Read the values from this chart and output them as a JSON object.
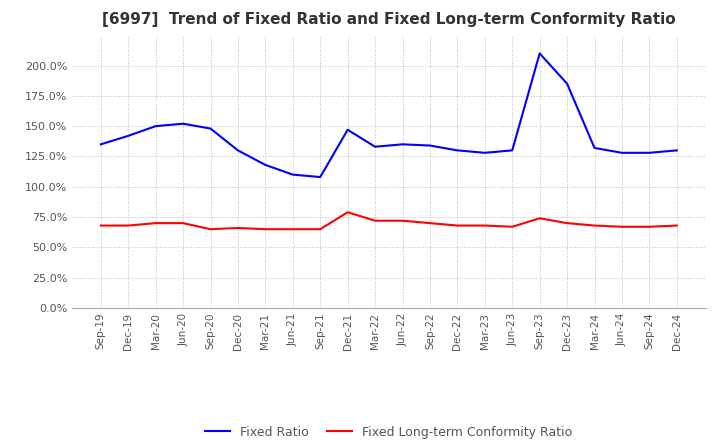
{
  "title": "[6997]  Trend of Fixed Ratio and Fixed Long-term Conformity Ratio",
  "title_fontsize": 11,
  "legend_entries": [
    "Fixed Ratio",
    "Fixed Long-term Conformity Ratio"
  ],
  "line_colors": [
    "#0000ff",
    "#ff0000"
  ],
  "x_labels": [
    "Sep-19",
    "Dec-19",
    "Mar-20",
    "Jun-20",
    "Sep-20",
    "Dec-20",
    "Mar-21",
    "Jun-21",
    "Sep-21",
    "Dec-21",
    "Mar-22",
    "Jun-22",
    "Sep-22",
    "Dec-22",
    "Mar-23",
    "Jun-23",
    "Sep-23",
    "Dec-23",
    "Mar-24",
    "Jun-24",
    "Sep-24",
    "Dec-24"
  ],
  "fixed_ratio": [
    135,
    142,
    150,
    152,
    148,
    130,
    118,
    110,
    108,
    147,
    133,
    135,
    134,
    130,
    128,
    130,
    210,
    185,
    132,
    128,
    128,
    130
  ],
  "fixed_lt_ratio": [
    68,
    68,
    70,
    70,
    65,
    66,
    65,
    65,
    65,
    79,
    72,
    72,
    70,
    68,
    68,
    67,
    74,
    70,
    68,
    67,
    67,
    68
  ],
  "ylim": [
    0,
    225
  ],
  "yticks": [
    0,
    25,
    50,
    75,
    100,
    125,
    150,
    175,
    200
  ],
  "grid_color": "#aaaaaa",
  "background_color": "#ffffff",
  "plot_bg_color": "#ffffff"
}
